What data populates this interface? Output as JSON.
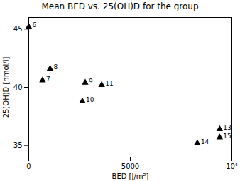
{
  "chart_data": {
    "type": "scatter",
    "title": "Mean BED vs. 25(OH)D for the group",
    "x_label": "BED [J/m²]",
    "y_label": "25(OH)D [nmol/l]",
    "x": [
      0,
      680,
      1050,
      2780,
      2640,
      3590,
      8300,
      9400,
      9400
    ],
    "values": [
      45.2,
      40.6,
      41.6,
      40.4,
      38.8,
      40.2,
      35.2,
      36.4,
      35.7
    ],
    "point_labels": [
      "6",
      "7",
      "8",
      "9",
      "10",
      "11",
      "14",
      "13",
      "15"
    ],
    "color": "#000000",
    "marker": "triangle",
    "xlim": [
      0,
      10000
    ],
    "ylim": [
      34,
      46
    ],
    "xticks": [
      0,
      5000,
      {
        "value": 10000,
        "label": "10⁴"
      }
    ],
    "yticks": [
      35,
      40,
      45
    ]
  }
}
